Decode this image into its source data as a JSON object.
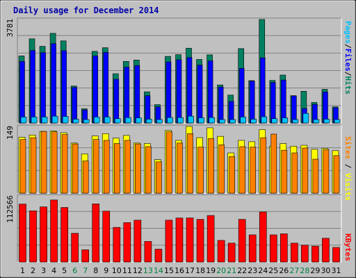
{
  "chart_data": [
    {
      "type": "bar",
      "title": "Daily usage for December 2014",
      "categories": [
        "1",
        "2",
        "3",
        "4",
        "5",
        "6",
        "7",
        "8",
        "9",
        "10",
        "11",
        "12",
        "13",
        "14",
        "15",
        "16",
        "17",
        "18",
        "19",
        "20",
        "21",
        "22",
        "23",
        "24",
        "25",
        "26",
        "27",
        "28",
        "29",
        "30",
        "31"
      ],
      "y_max_label": "3781",
      "ylim": [
        0,
        3781
      ],
      "grid": true,
      "right_label_parts": [
        {
          "text": "Pages",
          "color": "#00c0ff"
        },
        {
          "text": "/",
          "color": "#000000"
        },
        {
          "text": "Files",
          "color": "#0000ff"
        },
        {
          "text": "/",
          "color": "#000000"
        },
        {
          "text": "Hits",
          "color": "#008060"
        }
      ],
      "series": [
        {
          "name": "Hits",
          "color": "#008060",
          "values": [
            2450,
            3075,
            2800,
            3275,
            3000,
            1350,
            520,
            2617,
            2750,
            1800,
            2250,
            2300,
            1140,
            671,
            2433,
            2497,
            2730,
            2322,
            2490,
            1391,
            1020,
            2718,
            1548,
            3781,
            1555,
            1751,
            1000,
            1160,
            750,
            1230,
            590
          ]
        },
        {
          "name": "Files",
          "color": "#0000ff",
          "values": [
            2250,
            2650,
            2570,
            2900,
            2640,
            1300,
            480,
            2450,
            2580,
            1600,
            2040,
            2100,
            1000,
            590,
            2230,
            2310,
            2390,
            2116,
            2270,
            1313,
            790,
            1995,
            1530,
            2380,
            1480,
            1570,
            990,
            530,
            680,
            1130,
            560
          ]
        },
        {
          "name": "Pages",
          "color": "#00c0ff",
          "values": [
            220,
            220,
            220,
            250,
            240,
            140,
            80,
            220,
            220,
            160,
            200,
            190,
            140,
            60,
            200,
            200,
            250,
            190,
            200,
            120,
            90,
            220,
            140,
            230,
            160,
            190,
            110,
            350,
            90,
            140,
            80
          ]
        }
      ]
    },
    {
      "type": "bar",
      "categories": [
        "1",
        "2",
        "3",
        "4",
        "5",
        "6",
        "7",
        "8",
        "9",
        "10",
        "11",
        "12",
        "13",
        "14",
        "15",
        "16",
        "17",
        "18",
        "19",
        "20",
        "21",
        "22",
        "23",
        "24",
        "25",
        "26",
        "27",
        "28",
        "29",
        "30",
        "31"
      ],
      "y_max_label": "149",
      "ylim": [
        0,
        149
      ],
      "grid": true,
      "right_label_parts": [
        {
          "text": "Sites",
          "color": "#ff8000"
        },
        {
          "text": " / ",
          "color": "#000000"
        },
        {
          "text": "Visits",
          "color": "#ffff00"
        }
      ],
      "series": [
        {
          "name": "Visits",
          "color": "#ffff00",
          "values": [
            125,
            130,
            138,
            139,
            135,
            112,
            88,
            128,
            133,
            123,
            129,
            112,
            111,
            75,
            140,
            118,
            149,
            124,
            146,
            127,
            90,
            118,
            115,
            142,
            105,
            111,
            105,
            107,
            98,
            100,
            95
          ]
        },
        {
          "name": "Sites",
          "color": "#ff8000",
          "values": [
            120,
            124,
            138,
            137,
            131,
            110,
            72,
            120,
            118,
            111,
            118,
            110,
            104,
            70,
            137,
            112,
            133,
            103,
            122,
            108,
            82,
            104,
            103,
            124,
            132,
            96,
            90,
            101,
            76,
            97,
            84
          ]
        }
      ]
    },
    {
      "type": "bar",
      "categories": [
        "1",
        "2",
        "3",
        "4",
        "5",
        "6",
        "7",
        "8",
        "9",
        "10",
        "11",
        "12",
        "13",
        "14",
        "15",
        "16",
        "17",
        "18",
        "19",
        "20",
        "21",
        "22",
        "23",
        "24",
        "25",
        "26",
        "27",
        "28",
        "29",
        "30",
        "31"
      ],
      "y_max_label": "112566",
      "ylim": [
        0,
        112566
      ],
      "grid": true,
      "right_label_parts": [
        {
          "text": "KBytes",
          "color": "#ff0000"
        }
      ],
      "series": [
        {
          "name": "KBytes",
          "color": "#ff0000",
          "values": [
            98770,
            87300,
            94050,
            105700,
            93000,
            48900,
            20800,
            99100,
            86700,
            59100,
            67200,
            71300,
            35070,
            21900,
            71300,
            75000,
            75100,
            72700,
            79300,
            36900,
            32200,
            72700,
            46300,
            85300,
            46300,
            48100,
            32200,
            28700,
            27100,
            40500,
            24900
          ]
        }
      ]
    }
  ],
  "x_axis": {
    "weekday_color": "#000000",
    "weekend_color": "#008040",
    "weekend_days": [
      "6",
      "7",
      "13",
      "14",
      "20",
      "21",
      "27",
      "28"
    ]
  }
}
